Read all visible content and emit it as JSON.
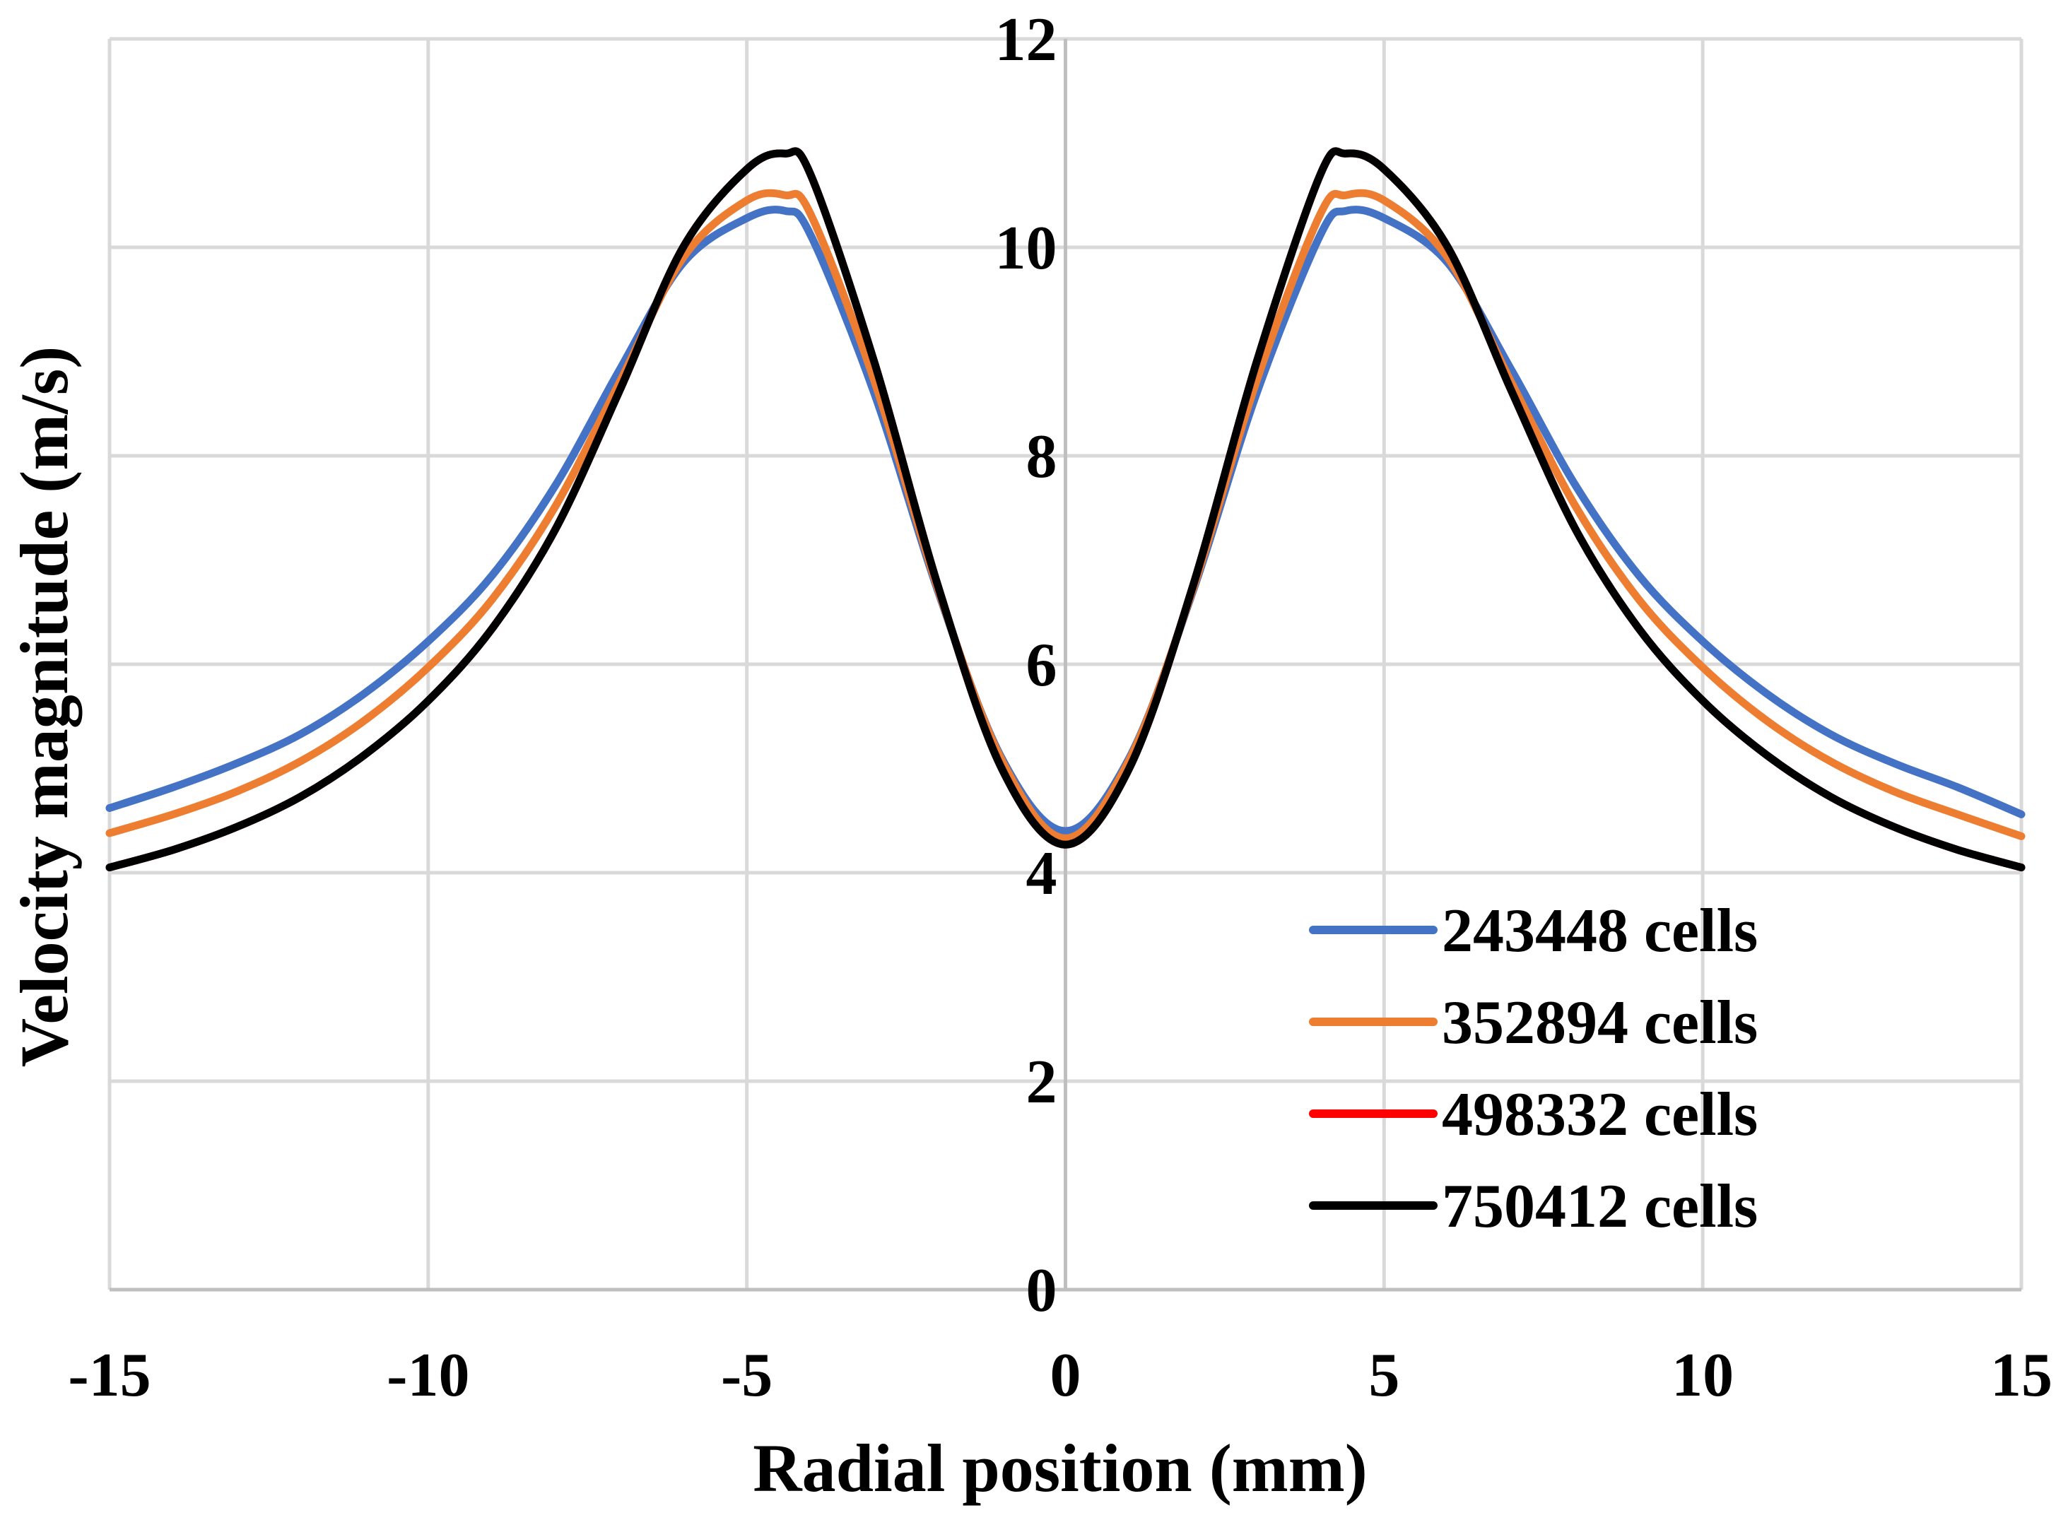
{
  "chart_data": {
    "type": "line",
    "title": "",
    "xlabel": "Radial position (mm)",
    "ylabel": "Velocity magnitude (m/s)",
    "xlim": [
      -15,
      15
    ],
    "ylim": [
      0,
      12
    ],
    "x_ticks": [
      -15,
      -10,
      -5,
      0,
      5,
      10,
      15
    ],
    "y_ticks": [
      0,
      2,
      4,
      6,
      8,
      10,
      12
    ],
    "x_tick_labels": [
      "-15",
      "-10",
      "-5",
      "0",
      "5",
      "10",
      "15"
    ],
    "y_tick_labels": [
      "0",
      "2",
      "4",
      "6",
      "8",
      "10",
      "12"
    ],
    "grid": true,
    "legend_position": "bottom-right",
    "x": [
      -15,
      -14,
      -13,
      -12,
      -11,
      -10,
      -9,
      -8,
      -7,
      -6,
      -5,
      -4.4,
      -4,
      -3,
      -2,
      -1,
      0,
      1,
      2,
      3,
      4,
      4.4,
      5,
      6,
      7,
      8,
      9,
      10,
      11,
      12,
      13,
      14,
      15
    ],
    "series": [
      {
        "name": "243448 cells",
        "color": "#4472C4",
        "values": [
          4.62,
          4.82,
          5.05,
          5.33,
          5.72,
          6.22,
          6.85,
          7.72,
          8.82,
          9.85,
          10.28,
          10.35,
          10.12,
          8.6,
          6.7,
          5.1,
          4.4,
          5.1,
          6.7,
          8.6,
          10.12,
          10.35,
          10.28,
          9.85,
          8.82,
          7.72,
          6.85,
          6.22,
          5.72,
          5.33,
          5.05,
          4.82,
          4.56
        ]
      },
      {
        "name": "352894 cells",
        "color": "#ED7D31",
        "values": [
          4.38,
          4.56,
          4.78,
          5.07,
          5.46,
          5.97,
          6.62,
          7.52,
          8.7,
          9.9,
          10.45,
          10.5,
          10.32,
          8.72,
          6.72,
          5.08,
          4.33,
          5.08,
          6.72,
          8.72,
          10.32,
          10.5,
          10.45,
          9.9,
          8.7,
          7.52,
          6.62,
          5.97,
          5.46,
          5.07,
          4.78,
          4.56,
          4.35
        ]
      },
      {
        "name": "498332 cells",
        "color": "#FF0000",
        "values": [
          4.05,
          4.22,
          4.44,
          4.73,
          5.13,
          5.65,
          6.34,
          7.3,
          8.62,
          10.0,
          10.75,
          10.9,
          10.7,
          8.9,
          6.75,
          5.0,
          4.27,
          5.0,
          6.75,
          8.9,
          10.7,
          10.9,
          10.75,
          10.0,
          8.62,
          7.3,
          6.34,
          5.65,
          5.13,
          4.73,
          4.44,
          4.22,
          4.05
        ]
      },
      {
        "name": "750412 cells",
        "color": "#000000",
        "values": [
          4.05,
          4.22,
          4.44,
          4.73,
          5.13,
          5.65,
          6.34,
          7.3,
          8.62,
          10.0,
          10.75,
          10.9,
          10.7,
          8.9,
          6.75,
          5.0,
          4.27,
          5.0,
          6.75,
          8.9,
          10.7,
          10.9,
          10.75,
          10.0,
          8.62,
          7.3,
          6.34,
          5.65,
          5.13,
          4.73,
          4.44,
          4.22,
          4.05
        ]
      }
    ]
  }
}
